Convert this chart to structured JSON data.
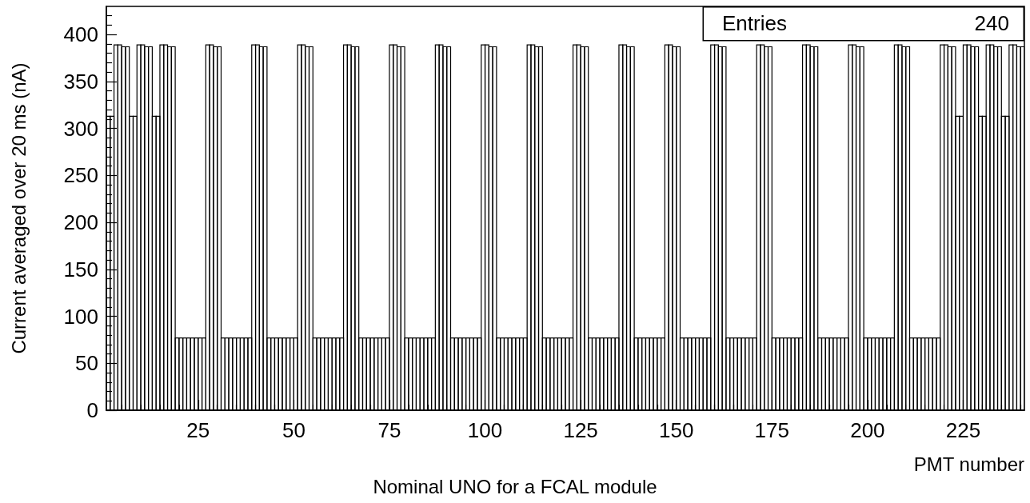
{
  "chart_data": {
    "type": "histogram",
    "title": "Nominal UNO for a FCAL module",
    "xlabel": "PMT number",
    "ylabel": "Current averaged over 20 ms (nA)",
    "annotations": [
      "Entries",
      "240"
    ],
    "color": "#000000",
    "bins": [
      1,
      2,
      3,
      4,
      5,
      6,
      7,
      8,
      9,
      10,
      11,
      12,
      13,
      14,
      15,
      16,
      17,
      18,
      19,
      20,
      21,
      22,
      23,
      24,
      25,
      26,
      27,
      28,
      29,
      30,
      31,
      32,
      33,
      34,
      35,
      36,
      37,
      38,
      39,
      40,
      41,
      42,
      43,
      44,
      45,
      46,
      47,
      48,
      49,
      50,
      51,
      52,
      53,
      54,
      55,
      56,
      57,
      58,
      59,
      60,
      61,
      62,
      63,
      64,
      65,
      66,
      67,
      68,
      69,
      70,
      71,
      72,
      73,
      74,
      75,
      76,
      77,
      78,
      79,
      80,
      81,
      82,
      83,
      84,
      85,
      86,
      87,
      88,
      89,
      90,
      91,
      92,
      93,
      94,
      95,
      96,
      97,
      98,
      99,
      100,
      101,
      102,
      103,
      104,
      105,
      106,
      107,
      108,
      109,
      110,
      111,
      112,
      113,
      114,
      115,
      116,
      117,
      118,
      119,
      120,
      121,
      122,
      123,
      124,
      125,
      126,
      127,
      128,
      129,
      130,
      131,
      132,
      133,
      134,
      135,
      136,
      137,
      138,
      139,
      140,
      141,
      142,
      143,
      144,
      145,
      146,
      147,
      148,
      149,
      150,
      151,
      152,
      153,
      154,
      155,
      156,
      157,
      158,
      159,
      160,
      161,
      162,
      163,
      164,
      165,
      166,
      167,
      168,
      169,
      170,
      171,
      172,
      173,
      174,
      175,
      176,
      177,
      178,
      179,
      180,
      181,
      182,
      183,
      184,
      185,
      186,
      187,
      188,
      189,
      190,
      191,
      192,
      193,
      194,
      195,
      196,
      197,
      198,
      199,
      200,
      201,
      202,
      203,
      204,
      205,
      206,
      207,
      208,
      209,
      210,
      211,
      212,
      213,
      214,
      215,
      216,
      217,
      218,
      219,
      220,
      221,
      222,
      223,
      224,
      225,
      226,
      227,
      228,
      229,
      230,
      231,
      232,
      233,
      234,
      235,
      236,
      237,
      238,
      239,
      240,
      241
    ],
    "values": [
      313,
      313,
      389,
      389,
      387,
      387,
      313,
      313,
      389,
      389,
      387,
      387,
      313,
      313,
      389,
      389,
      387,
      387,
      77,
      77,
      77,
      77,
      77,
      77,
      77,
      77,
      389,
      389,
      387,
      387,
      77,
      77,
      77,
      77,
      77,
      77,
      77,
      77,
      389,
      389,
      387,
      387,
      77,
      77,
      77,
      77,
      77,
      77,
      77,
      77,
      389,
      389,
      387,
      387,
      77,
      77,
      77,
      77,
      77,
      77,
      77,
      77,
      389,
      389,
      387,
      387,
      77,
      77,
      77,
      77,
      77,
      77,
      77,
      77,
      389,
      389,
      387,
      387,
      77,
      77,
      77,
      77,
      77,
      77,
      77,
      77,
      389,
      389,
      387,
      387,
      77,
      77,
      77,
      77,
      77,
      77,
      77,
      77,
      389,
      389,
      387,
      387,
      77,
      77,
      77,
      77,
      77,
      77,
      77,
      77,
      389,
      389,
      387,
      387,
      77,
      77,
      77,
      77,
      77,
      77,
      77,
      77,
      389,
      389,
      387,
      387,
      77,
      77,
      77,
      77,
      77,
      77,
      77,
      77,
      389,
      389,
      387,
      387,
      77,
      77,
      77,
      77,
      77,
      77,
      77,
      77,
      389,
      389,
      387,
      387,
      77,
      77,
      77,
      77,
      77,
      77,
      77,
      77,
      389,
      389,
      387,
      387,
      77,
      77,
      77,
      77,
      77,
      77,
      77,
      77,
      389,
      389,
      387,
      387,
      77,
      77,
      77,
      77,
      77,
      77,
      77,
      77,
      389,
      389,
      387,
      387,
      77,
      77,
      77,
      77,
      77,
      77,
      77,
      77,
      389,
      389,
      387,
      387,
      77,
      77,
      77,
      77,
      77,
      77,
      77,
      77,
      389,
      389,
      387,
      387,
      77,
      77,
      77,
      77,
      77,
      77,
      77,
      77,
      389,
      389,
      387,
      387,
      313,
      313,
      389,
      389,
      387,
      387,
      313,
      313,
      389,
      389,
      387,
      387,
      313,
      313,
      389,
      389,
      387,
      387
    ],
    "xlim": [
      1,
      241
    ],
    "xticks": [
      {
        "value": 5,
        "label": null
      },
      {
        "value": 10,
        "label": null
      },
      {
        "value": 15,
        "label": null
      },
      {
        "value": 20,
        "label": null
      },
      25,
      {
        "value": 30,
        "label": null
      },
      {
        "value": 35,
        "label": null
      },
      {
        "value": 40,
        "label": null
      },
      {
        "value": 45,
        "label": null
      },
      50,
      {
        "value": 55,
        "label": null
      },
      {
        "value": 60,
        "label": null
      },
      {
        "value": 65,
        "label": null
      },
      {
        "value": 70,
        "label": null
      },
      75,
      {
        "value": 80,
        "label": null
      },
      {
        "value": 85,
        "label": null
      },
      {
        "value": 90,
        "label": null
      },
      {
        "value": 95,
        "label": null
      },
      100,
      {
        "value": 105,
        "label": null
      },
      {
        "value": 110,
        "label": null
      },
      {
        "value": 115,
        "label": null
      },
      {
        "value": 120,
        "label": null
      },
      125,
      {
        "value": 130,
        "label": null
      },
      {
        "value": 135,
        "label": null
      },
      {
        "value": 140,
        "label": null
      },
      {
        "value": 145,
        "label": null
      },
      150,
      {
        "value": 155,
        "label": null
      },
      {
        "value": 160,
        "label": null
      },
      {
        "value": 165,
        "label": null
      },
      {
        "value": 170,
        "label": null
      },
      175,
      {
        "value": 180,
        "label": null
      },
      {
        "value": 185,
        "label": null
      },
      {
        "value": 190,
        "label": null
      },
      {
        "value": 195,
        "label": null
      },
      200,
      {
        "value": 205,
        "label": null
      },
      {
        "value": 210,
        "label": null
      },
      {
        "value": 215,
        "label": null
      },
      {
        "value": 220,
        "label": null
      },
      225,
      {
        "value": 230,
        "label": null
      },
      {
        "value": 235,
        "label": null
      },
      {
        "value": 240,
        "label": null
      }
    ],
    "ylim": [
      0,
      430
    ],
    "yticks": [
      0,
      {
        "value": 10,
        "label": null
      },
      {
        "value": 20,
        "label": null
      },
      {
        "value": 30,
        "label": null
      },
      {
        "value": 40,
        "label": null
      },
      50,
      {
        "value": 60,
        "label": null
      },
      {
        "value": 70,
        "label": null
      },
      {
        "value": 80,
        "label": null
      },
      {
        "value": 90,
        "label": null
      },
      100,
      {
        "value": 110,
        "label": null
      },
      {
        "value": 120,
        "label": null
      },
      {
        "value": 130,
        "label": null
      },
      {
        "value": 140,
        "label": null
      },
      150,
      {
        "value": 160,
        "label": null
      },
      {
        "value": 170,
        "label": null
      },
      {
        "value": 180,
        "label": null
      },
      {
        "value": 190,
        "label": null
      },
      200,
      {
        "value": 210,
        "label": null
      },
      {
        "value": 220,
        "label": null
      },
      {
        "value": 230,
        "label": null
      },
      {
        "value": 240,
        "label": null
      },
      250,
      {
        "value": 260,
        "label": null
      },
      {
        "value": 270,
        "label": null
      },
      {
        "value": 280,
        "label": null
      },
      {
        "value": 290,
        "label": null
      },
      300,
      {
        "value": 310,
        "label": null
      },
      {
        "value": 320,
        "label": null
      },
      {
        "value": 330,
        "label": null
      },
      {
        "value": 340,
        "label": null
      },
      350,
      {
        "value": 360,
        "label": null
      },
      {
        "value": 370,
        "label": null
      },
      {
        "value": 380,
        "label": null
      },
      {
        "value": 390,
        "label": null
      },
      400,
      {
        "value": 410,
        "label": null
      },
      {
        "value": 420,
        "label": null
      }
    ]
  }
}
